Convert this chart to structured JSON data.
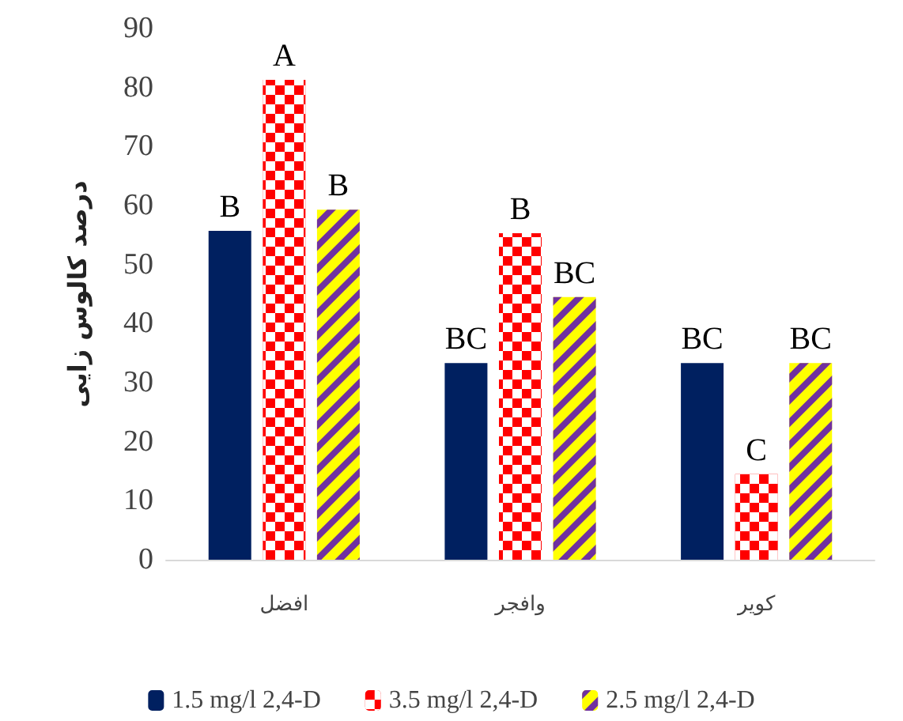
{
  "chart_data": {
    "type": "bar",
    "ylabel": "درصد کالوس زایی",
    "categories": [
      "افضل",
      "وافجر",
      "کویر"
    ],
    "series": [
      {
        "name": "1.5 mg/l 2,4-D",
        "color": "#002060",
        "values": [
          55.7,
          33.3,
          33.3
        ],
        "value_labels": [
          "B",
          "BC",
          "BC"
        ]
      },
      {
        "name": "3.5 mg/l 2,4-D",
        "color": "#ff0000",
        "values": [
          81.3,
          55.3,
          14.5
        ],
        "value_labels": [
          "A",
          "B",
          "C"
        ]
      },
      {
        "name": "2.5 mg/l 2,4-D",
        "color": "#ffff00",
        "values": [
          59.3,
          44.5,
          33.3
        ],
        "value_labels": [
          "B",
          "BC",
          "BC"
        ]
      }
    ],
    "ylim": [
      0,
      90
    ],
    "yticks": [
      0,
      10,
      20,
      30,
      40,
      50,
      60,
      70,
      80,
      90
    ],
    "grid": false,
    "legend": "bottom"
  }
}
